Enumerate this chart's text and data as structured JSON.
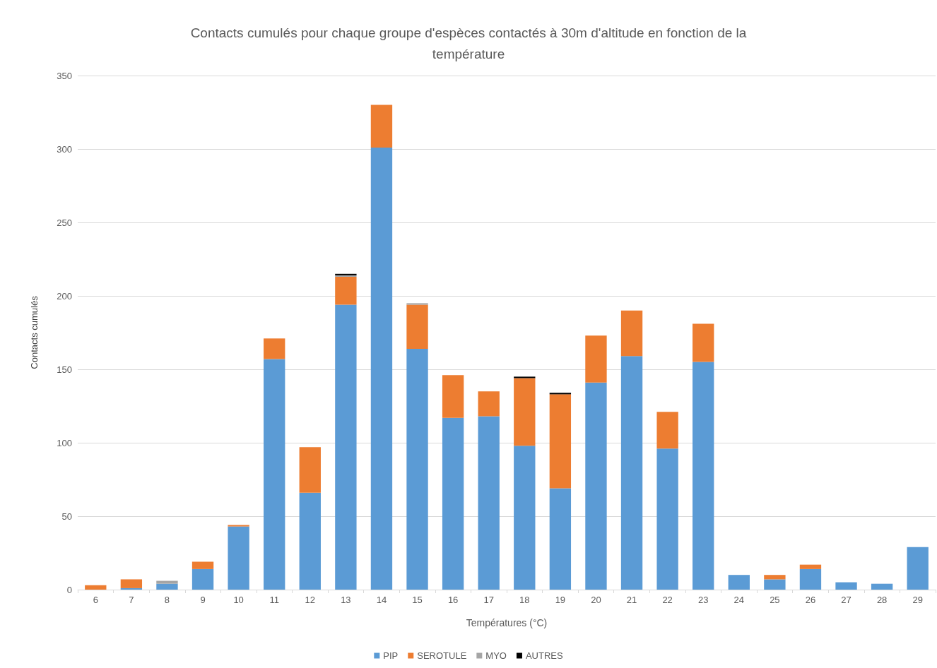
{
  "chart_data": {
    "type": "bar",
    "title": "Contacts cumulés pour chaque groupe d'espèces contactés à 30m d'altitude en fonction de la\ntempérature",
    "xlabel": "Températures (°C)",
    "ylabel": "Contacts cumulés",
    "categories": [
      "6",
      "7",
      "8",
      "9",
      "10",
      "11",
      "12",
      "13",
      "14",
      "15",
      "16",
      "17",
      "18",
      "19",
      "20",
      "21",
      "22",
      "23",
      "24",
      "25",
      "26",
      "27",
      "28",
      "29"
    ],
    "stacked": true,
    "series": [
      {
        "name": "PIP",
        "color": "#5b9bd5",
        "values": [
          0,
          1,
          4,
          14,
          43,
          157,
          66,
          194,
          301,
          164,
          117,
          118,
          98,
          69,
          141,
          159,
          96,
          155,
          10,
          7,
          14,
          5,
          4,
          29
        ]
      },
      {
        "name": "SEROTULE",
        "color": "#ed7d31",
        "values": [
          3,
          6,
          0,
          5,
          1,
          14,
          31,
          19,
          29,
          30,
          29,
          17,
          46,
          64,
          32,
          31,
          25,
          26,
          0,
          3,
          3,
          0,
          0,
          0
        ]
      },
      {
        "name": "MYO",
        "color": "#a5a5a5",
        "values": [
          0,
          0,
          2,
          0,
          0,
          0,
          0,
          1,
          0,
          1,
          0,
          0,
          0,
          0,
          0,
          0,
          0,
          0,
          0,
          0,
          0,
          0,
          0,
          0
        ]
      },
      {
        "name": "AUTRES",
        "color": "#000000",
        "values": [
          0,
          0,
          0,
          0,
          0,
          0,
          0,
          1,
          0,
          0,
          0,
          0,
          1,
          1,
          0,
          0,
          0,
          0,
          0,
          0,
          0,
          0,
          0,
          0
        ]
      }
    ],
    "ylim": [
      0,
      350
    ],
    "yticks": [
      0,
      50,
      100,
      150,
      200,
      250,
      300,
      350
    ],
    "grid": "y",
    "legend": "bottom"
  }
}
